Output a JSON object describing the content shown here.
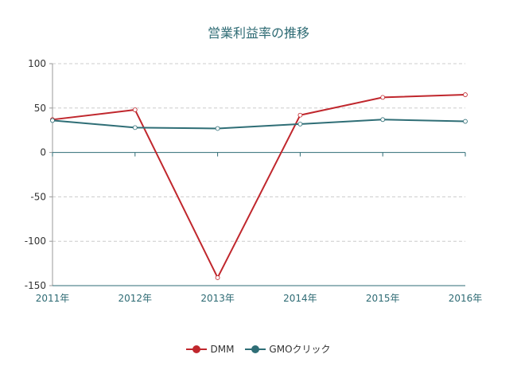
{
  "chart_data": {
    "type": "line",
    "title": "営業利益率の推移",
    "categories": [
      "2011年",
      "2012年",
      "2013年",
      "2014年",
      "2015年",
      "2016年"
    ],
    "ylim": [
      -150,
      100
    ],
    "yticks": [
      100,
      50,
      0,
      -50,
      -100,
      -150
    ],
    "grid": true,
    "legend_position": "bottom",
    "series": [
      {
        "name": "DMM",
        "color": "#c0272d",
        "values": [
          37,
          48,
          -141,
          42,
          62,
          65
        ]
      },
      {
        "name": "GMOクリック",
        "color": "#2f6e76",
        "values": [
          36,
          28,
          27,
          32,
          37,
          35
        ]
      }
    ],
    "axis_label_color": "#2e6b74",
    "tick_label_color": "#333333",
    "grid_color": "#cccccc"
  }
}
